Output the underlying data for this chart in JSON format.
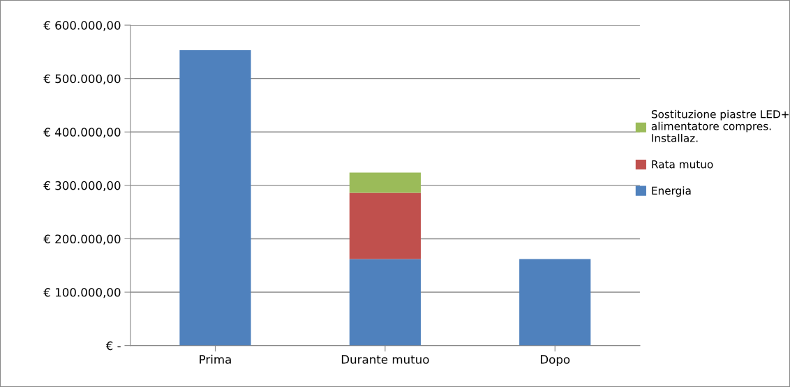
{
  "chart_data": {
    "type": "bar",
    "stacked": true,
    "categories": [
      "Prima",
      "Durante mutuo",
      "Dopo"
    ],
    "series": [
      {
        "name": "Energia",
        "color": "#4f81bd",
        "values": [
          553000,
          162000,
          162000
        ]
      },
      {
        "name": "Rata mutuo",
        "color": "#c0504d",
        "values": [
          0,
          124000,
          0
        ]
      },
      {
        "name": "Sostituzione piastre LED+\nalimentatore compres.\nInstallaz.",
        "color": "#9bbb59",
        "values": [
          0,
          38000,
          0
        ]
      }
    ],
    "ylim": [
      0,
      600000
    ],
    "yticks": [
      {
        "value": 0,
        "label": "€ -"
      },
      {
        "value": 100000,
        "label": "€ 100.000,00"
      },
      {
        "value": 200000,
        "label": "€ 200.000,00"
      },
      {
        "value": 300000,
        "label": "€ 300.000,00"
      },
      {
        "value": 400000,
        "label": "€ 400.000,00"
      },
      {
        "value": 500000,
        "label": "€ 500.000,00"
      },
      {
        "value": 600000,
        "label": "€ 600.000,00"
      }
    ],
    "grid": "y",
    "legend": "right"
  }
}
